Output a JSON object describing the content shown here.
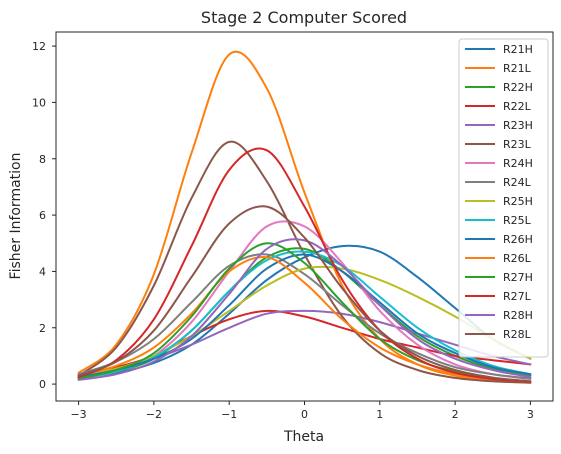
{
  "chart_data": {
    "type": "line",
    "title": "Stage 2 Computer Scored",
    "xlabel": "Theta",
    "ylabel": "Fisher Information",
    "xlim": [
      -3.3,
      3.3
    ],
    "ylim": [
      -0.6,
      12.5
    ],
    "xticks": [
      -3,
      -2,
      -1,
      0,
      1,
      2,
      3
    ],
    "yticks": [
      0,
      2,
      4,
      6,
      8,
      10,
      12
    ],
    "grid": false,
    "legend_position": "top-right",
    "x": [
      -3,
      -2.5,
      -2,
      -1.5,
      -1,
      -0.5,
      0,
      0.5,
      1,
      1.5,
      2,
      2.5,
      3
    ],
    "series": [
      {
        "name": "R21H",
        "color": "#1f77b4",
        "values": [
          0.25,
          0.4,
          0.75,
          1.4,
          2.5,
          3.7,
          4.5,
          4.9,
          4.7,
          3.8,
          2.7,
          1.6,
          0.9
        ]
      },
      {
        "name": "R21L",
        "color": "#ff7f0e",
        "values": [
          0.4,
          1.4,
          3.9,
          8.2,
          11.7,
          10.5,
          6.8,
          3.5,
          1.6,
          0.7,
          0.3,
          0.12,
          0.05
        ]
      },
      {
        "name": "R22H",
        "color": "#2ca02c",
        "values": [
          0.2,
          0.45,
          0.9,
          1.9,
          3.3,
          4.5,
          4.8,
          4.0,
          2.8,
          1.7,
          1.0,
          0.55,
          0.3
        ]
      },
      {
        "name": "R22L",
        "color": "#d62728",
        "values": [
          0.3,
          0.6,
          1.0,
          1.7,
          2.3,
          2.6,
          2.4,
          2.0,
          1.6,
          1.3,
          1.0,
          0.85,
          0.7
        ]
      },
      {
        "name": "R23H",
        "color": "#9467bd",
        "values": [
          0.3,
          0.5,
          0.9,
          1.4,
          2.0,
          2.5,
          2.6,
          2.5,
          2.2,
          1.8,
          1.4,
          1.0,
          0.7
        ]
      },
      {
        "name": "R23L",
        "color": "#8c564b",
        "values": [
          0.3,
          1.3,
          3.5,
          6.6,
          8.6,
          7.2,
          4.6,
          2.4,
          1.1,
          0.5,
          0.22,
          0.1,
          0.05
        ]
      },
      {
        "name": "R24H",
        "color": "#e377c2",
        "values": [
          0.2,
          0.45,
          1.0,
          2.2,
          4.0,
          5.6,
          5.6,
          4.3,
          2.6,
          1.4,
          0.7,
          0.35,
          0.18
        ]
      },
      {
        "name": "R24L",
        "color": "#7f7f7f",
        "values": [
          0.35,
          0.8,
          1.6,
          2.9,
          4.2,
          4.6,
          3.9,
          2.8,
          1.8,
          1.1,
          0.6,
          0.35,
          0.2
        ]
      },
      {
        "name": "R25H",
        "color": "#bcbd22",
        "values": [
          0.3,
          0.55,
          1.0,
          1.7,
          2.6,
          3.5,
          4.1,
          4.1,
          3.7,
          3.1,
          2.4,
          1.6,
          0.9
        ]
      },
      {
        "name": "R25L",
        "color": "#17becf",
        "values": [
          0.2,
          0.45,
          0.95,
          1.9,
          3.3,
          4.4,
          4.7,
          4.2,
          3.1,
          2.0,
          1.2,
          0.65,
          0.35
        ]
      },
      {
        "name": "R26H",
        "color": "#1f77b4",
        "values": [
          0.25,
          0.5,
          0.9,
          1.6,
          2.8,
          4.1,
          4.6,
          4.0,
          2.9,
          1.8,
          1.1,
          0.6,
          0.35
        ]
      },
      {
        "name": "R26L",
        "color": "#ff7f0e",
        "values": [
          0.3,
          0.65,
          1.3,
          2.5,
          4.0,
          4.5,
          3.6,
          2.3,
          1.3,
          0.7,
          0.35,
          0.17,
          0.08
        ]
      },
      {
        "name": "R27H",
        "color": "#2ca02c",
        "values": [
          0.2,
          0.5,
          1.1,
          2.4,
          4.1,
          5.0,
          4.3,
          2.9,
          1.6,
          0.85,
          0.45,
          0.22,
          0.1
        ]
      },
      {
        "name": "R27L",
        "color": "#d62728",
        "values": [
          0.25,
          0.85,
          2.3,
          4.9,
          7.6,
          8.3,
          6.3,
          3.7,
          1.9,
          0.9,
          0.4,
          0.18,
          0.08
        ]
      },
      {
        "name": "R28H",
        "color": "#9467bd",
        "values": [
          0.15,
          0.35,
          0.8,
          1.7,
          3.2,
          4.8,
          5.1,
          4.2,
          2.8,
          1.6,
          0.9,
          0.5,
          0.25
        ]
      },
      {
        "name": "R28L",
        "color": "#8c564b",
        "values": [
          0.3,
          0.8,
          1.9,
          3.8,
          5.7,
          6.3,
          5.2,
          3.4,
          1.9,
          1.0,
          0.5,
          0.23,
          0.1
        ]
      }
    ]
  }
}
